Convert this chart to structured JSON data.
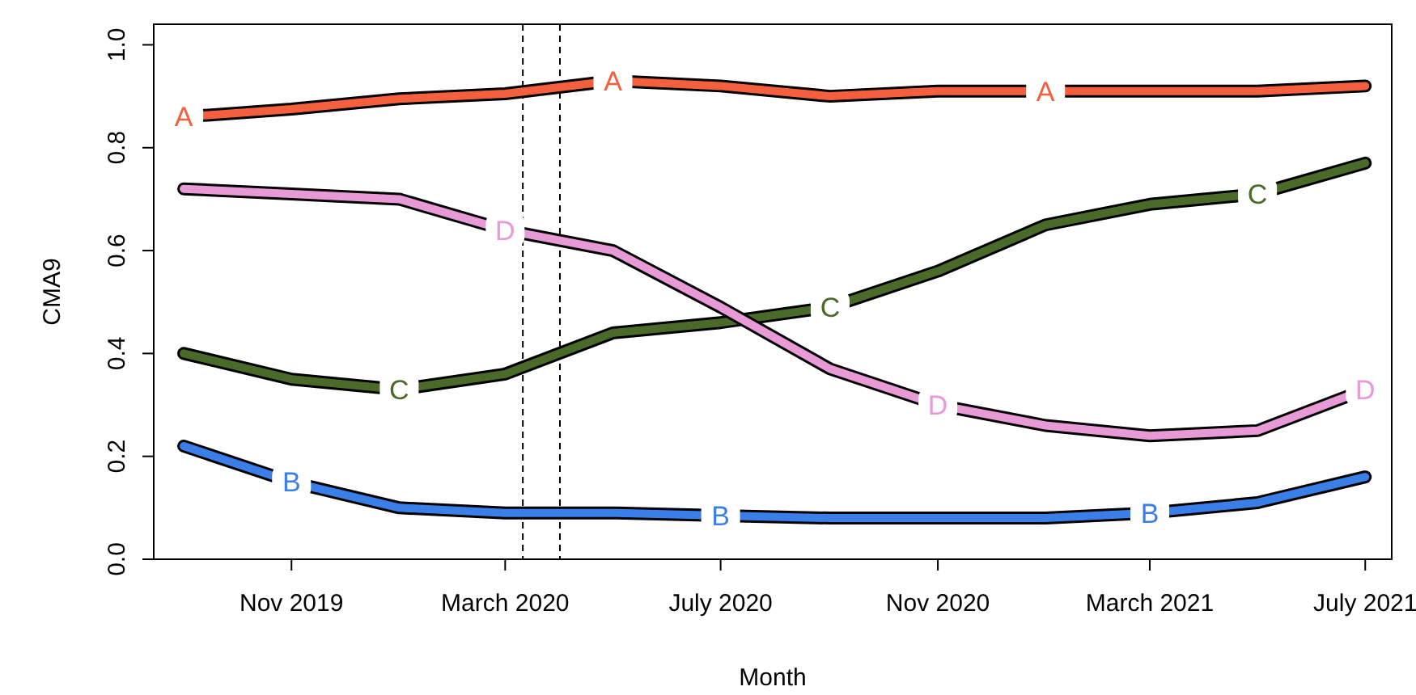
{
  "chart_data": {
    "type": "line",
    "xlabel": "Month",
    "ylabel": "CMA9",
    "x": [
      "2019-09",
      "2019-11",
      "2020-01",
      "2020-03",
      "2020-05",
      "2020-07",
      "2020-09",
      "2020-11",
      "2021-01",
      "2021-03",
      "2021-05",
      "2021-07"
    ],
    "series": [
      {
        "name": "A",
        "color": "#f4603e",
        "values": [
          0.86,
          0.875,
          0.895,
          0.905,
          0.93,
          0.92,
          0.9,
          0.91,
          0.91,
          0.91,
          0.91,
          0.92
        ]
      },
      {
        "name": "B",
        "color": "#3a7ee8",
        "values": [
          0.22,
          0.15,
          0.1,
          0.09,
          0.09,
          0.085,
          0.08,
          0.08,
          0.08,
          0.09,
          0.11,
          0.16
        ]
      },
      {
        "name": "C",
        "color": "#4a6a2a",
        "values": [
          0.4,
          0.35,
          0.33,
          0.36,
          0.44,
          0.46,
          0.49,
          0.56,
          0.65,
          0.69,
          0.71,
          0.77
        ]
      },
      {
        "name": "D",
        "color": "#e79ad6",
        "values": [
          0.72,
          0.71,
          0.7,
          0.64,
          0.6,
          0.49,
          0.37,
          0.3,
          0.26,
          0.24,
          0.25,
          0.33
        ]
      }
    ],
    "xlim": [
      "2019-08-15",
      "2021-07-16"
    ],
    "xticks": [
      {
        "value": "2019-11",
        "label": "Nov 2019"
      },
      {
        "value": "2020-03",
        "label": "March 2020"
      },
      {
        "value": "2020-07",
        "label": "July 2020"
      },
      {
        "value": "2020-11",
        "label": "Nov 2020"
      },
      {
        "value": "2021-03",
        "label": "March 2021"
      },
      {
        "value": "2021-07",
        "label": "July 2021"
      }
    ],
    "ylim": [
      0,
      1.04
    ],
    "yticks": [
      {
        "value": 0,
        "label": "0.0"
      },
      {
        "value": 0.2,
        "label": "0.2"
      },
      {
        "value": 0.4,
        "label": "0.4"
      },
      {
        "value": 0.6,
        "label": "0.6"
      },
      {
        "value": 0.8,
        "label": "0.8"
      },
      {
        "value": 1,
        "label": "1.0"
      }
    ],
    "ref_lines": [
      {
        "axis": "x",
        "value": "2020-03-11",
        "color": "#000000",
        "line_style": "dashed"
      },
      {
        "axis": "x",
        "value": "2020-04-01",
        "color": "#000000",
        "line_style": "dashed"
      }
    ],
    "grid": false,
    "marker": "none",
    "line_style": "solid"
  }
}
